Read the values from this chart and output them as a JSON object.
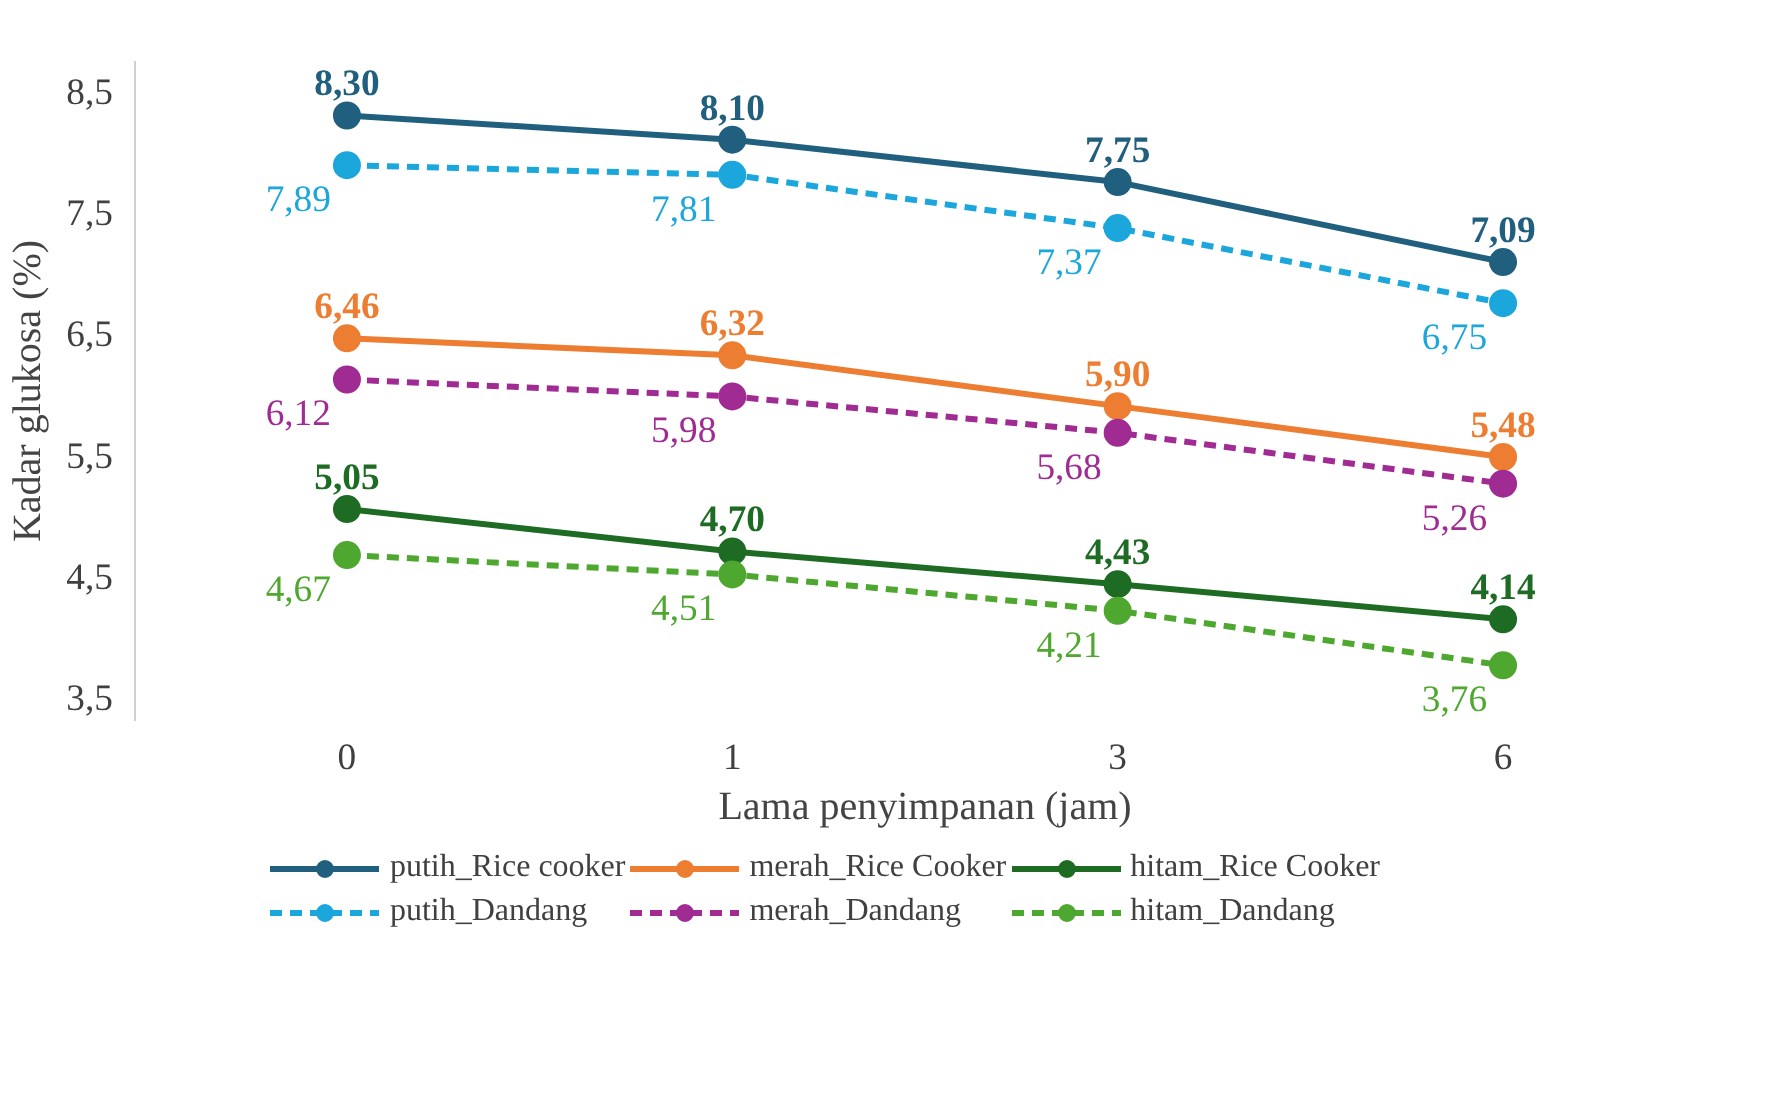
{
  "chart_data": {
    "type": "line",
    "xlabel": "Lama penyimpanan (jam)",
    "ylabel": "Kadar glukosa (%)",
    "categories": [
      "0",
      "1",
      "3",
      "6"
    ],
    "ylim": [
      3.3,
      8.75
    ],
    "yticks": [
      {
        "value": 3.5,
        "label": "3,5"
      },
      {
        "value": 4.5,
        "label": "4,5"
      },
      {
        "value": 5.5,
        "label": "5,5"
      },
      {
        "value": 6.5,
        "label": "6,5"
      },
      {
        "value": 7.5,
        "label": "7,5"
      },
      {
        "value": 8.5,
        "label": "8,5"
      }
    ],
    "grid": false,
    "legend": "bottom",
    "marker": "circle",
    "series": [
      {
        "name": "putih_Rice cooker",
        "color": "#215f7f",
        "line_style": "solid",
        "values": [
          8.3,
          8.1,
          7.75,
          7.09
        ],
        "value_labels": [
          "8,30",
          "8,10",
          "7,75",
          "7,09"
        ]
      },
      {
        "name": "merah_Rice Cooker",
        "color": "#ed7d31",
        "line_style": "solid",
        "values": [
          6.46,
          6.32,
          5.9,
          5.48
        ],
        "value_labels": [
          "6,46",
          "6,32",
          "5,90",
          "5,48"
        ]
      },
      {
        "name": "hitam_Rice Cooker",
        "color": "#1e6b24",
        "line_style": "solid",
        "values": [
          5.05,
          4.7,
          4.43,
          4.14
        ],
        "value_labels": [
          "5,05",
          "4,70",
          "4,43",
          "4,14"
        ]
      },
      {
        "name": "putih_Dandang",
        "color": "#1ba6dc",
        "line_style": "dashed",
        "values": [
          7.89,
          7.81,
          7.37,
          6.75
        ],
        "value_labels": [
          "7,89",
          "7,81",
          "7,37",
          "6,75"
        ]
      },
      {
        "name": "merah_Dandang",
        "color": "#a02b93",
        "line_style": "dashed",
        "values": [
          6.12,
          5.98,
          5.68,
          5.26
        ],
        "value_labels": [
          "6,12",
          "5,98",
          "5,68",
          "5,26"
        ]
      },
      {
        "name": "hitam_Dandang",
        "color": "#4ea72e",
        "line_style": "dashed",
        "values": [
          4.67,
          4.51,
          4.21,
          3.76
        ],
        "value_labels": [
          "4,67",
          "4,51",
          "4,21",
          "3,76"
        ]
      }
    ]
  }
}
